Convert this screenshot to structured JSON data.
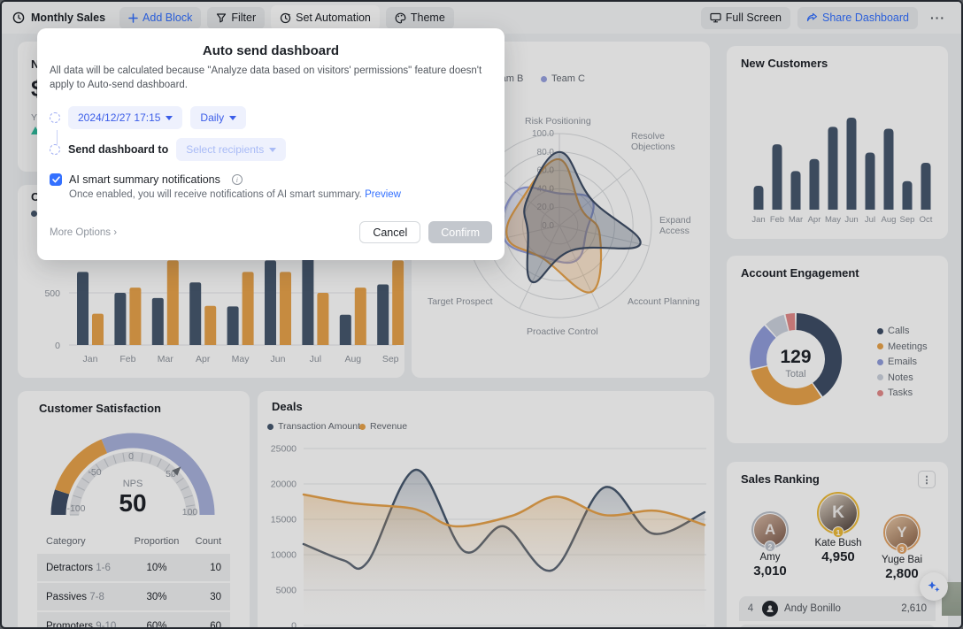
{
  "colors": {
    "accent": "#3370ff",
    "navy": "#47586f",
    "orange": "#e8a34b",
    "purple": "#98a2e0",
    "gauge_purple": "#a9b2dc",
    "notes_gray": "#ccd2dd",
    "tasks_red": "#e38b8b",
    "green": "#2ebf9f",
    "grid": "#e3e5e8",
    "tick_text": "#8f959e"
  },
  "toolbar": {
    "title": "Monthly Sales",
    "add_block": "Add Block",
    "filter": "Filter",
    "set_automation": "Set Automation",
    "theme": "Theme",
    "full_screen": "Full Screen",
    "share_dashboard": "Share Dashboard",
    "more": "···"
  },
  "modal": {
    "title": "Auto send dashboard",
    "description": "All data will be calculated because \"Analyze data based on visitors' permissions\" feature doesn't apply to Auto-send dashboard.",
    "schedule_time": "2024/12/27 17:15",
    "frequency": "Daily",
    "send_to_label": "Send dashboard to",
    "recipients_placeholder": "Select recipients",
    "ai_label": "AI smart summary notifications",
    "ai_description": "Once enabled, you will receive notifications of AI smart summary.",
    "preview": "Preview",
    "more_options": "More Options",
    "cancel": "Cancel",
    "confirm": "Confirm"
  },
  "fragments": {
    "metric_title": "N",
    "metric_value": "$",
    "metric_sub": "Y",
    "bar_card_title": "C"
  },
  "chart_data": [
    {
      "id": "monthly-grouped-bar",
      "type": "bar",
      "title_visible_fragment": "C",
      "ylim": [
        0,
        900
      ],
      "yticks": [
        {
          "label": "500",
          "value": 500
        },
        {
          "label": "0",
          "value": 0
        }
      ],
      "categories": [
        "Jan",
        "Feb",
        "Mar",
        "Apr",
        "May",
        "Jun",
        "Jul",
        "Aug",
        "Sep"
      ],
      "series": [
        {
          "name": "",
          "color": "#47586f",
          "values": [
            700,
            500,
            450,
            600,
            370,
            810,
            850,
            290,
            580
          ]
        },
        {
          "name": "",
          "color": "#e8a34b",
          "values": [
            300,
            550,
            810,
            375,
            700,
            700,
            500,
            550,
            810
          ]
        }
      ]
    },
    {
      "id": "team-radar",
      "type": "radar",
      "max": 100,
      "tick_labels": [
        "100.0",
        "80.0",
        "60.0",
        "40.0",
        "20.0",
        "0.0"
      ],
      "axes": [
        "Risk Positioning",
        "Resolve Objections",
        "Expand Access",
        "Account Planning",
        "Proactive Control",
        "Target Prospect",
        ""
      ],
      "legend": [
        {
          "name": "Team B",
          "color": "#e8a34b"
        },
        {
          "name": "Team C",
          "color": "#98a2e0"
        }
      ],
      "series": [
        {
          "name": "Team C",
          "color": "#98a2e0",
          "fill": "rgba(152,162,224,0.25)",
          "values": [
            35,
            45,
            30,
            42,
            38,
            62,
            60
          ]
        },
        {
          "name": "Team B",
          "color": "#e8a34b",
          "fill": "rgba(232,163,75,0.28)",
          "values": [
            72,
            30,
            45,
            80,
            40,
            58,
            50
          ]
        },
        {
          "name": "",
          "color": "#3f4e66",
          "fill": "rgba(63,78,102,0.30)",
          "values": [
            80,
            45,
            90,
            30,
            68,
            35,
            45
          ]
        }
      ]
    },
    {
      "id": "new-customers",
      "type": "bar",
      "title": "New Customers",
      "color": "#47586f",
      "categories": [
        "Jan",
        "Feb",
        "Mar",
        "Apr",
        "May",
        "Jun",
        "Jul",
        "Aug",
        "Sep",
        "Oct"
      ],
      "values": [
        26,
        71,
        42,
        55,
        90,
        100,
        62,
        88,
        31,
        51
      ]
    },
    {
      "id": "account-engagement",
      "type": "donut",
      "title": "Account Engagement",
      "center_value": "129",
      "center_label": "Total",
      "total": 129,
      "slices": [
        {
          "label": "Calls",
          "value": 52,
          "color": "#3f4e66"
        },
        {
          "label": "Meetings",
          "value": 40,
          "color": "#e8a34b"
        },
        {
          "label": "Emails",
          "value": 22,
          "color": "#929ddb"
        },
        {
          "label": "Notes",
          "value": 10,
          "color": "#ccd2dd"
        },
        {
          "label": "Tasks",
          "value": 5,
          "color": "#e38b8b"
        }
      ]
    },
    {
      "id": "customer-satisfaction",
      "type": "gauge",
      "title": "Customer Satisfaction",
      "min": -100,
      "max": 100,
      "value": 50,
      "value_label": "50",
      "center_label": "NPS",
      "ticks": [
        "-100",
        "-50",
        "0",
        "50",
        "100"
      ],
      "segments": [
        {
          "from": -100,
          "to": -80,
          "color": "#3f4e66"
        },
        {
          "from": -80,
          "to": -25,
          "color": "#e8a34b"
        },
        {
          "from": -25,
          "to": 100,
          "color": "#a9b2dc"
        }
      ]
    },
    {
      "id": "nps-table",
      "type": "table",
      "columns": [
        "Category",
        "Proportion",
        "Count"
      ],
      "rows": [
        {
          "category": "Detractors",
          "range": "1-6",
          "proportion": "10%",
          "count": "10"
        },
        {
          "category": "Passives",
          "range": "7-8",
          "proportion": "30%",
          "count": "30"
        },
        {
          "category": "Promoters",
          "range": "9-10",
          "proportion": "60%",
          "count": "60"
        }
      ]
    },
    {
      "id": "deals",
      "type": "area",
      "title": "Deals",
      "ylim": [
        0,
        25000
      ],
      "yticks": [
        "25000",
        "20000",
        "15000",
        "10000",
        "5000",
        "0"
      ],
      "series": [
        {
          "name": "Transaction Amount",
          "color": "#47586f",
          "fill": "rgba(71,88,111,0.30)",
          "points": [
            [
              0,
              11500
            ],
            [
              0.1,
              9200
            ],
            [
              0.16,
              9000
            ],
            [
              0.28,
              22000
            ],
            [
              0.4,
              10500
            ],
            [
              0.5,
              14000
            ],
            [
              0.62,
              7800
            ],
            [
              0.75,
              19500
            ],
            [
              0.87,
              13000
            ],
            [
              1,
              16000
            ]
          ]
        },
        {
          "name": "Revenue",
          "color": "#e8a34b",
          "fill": "rgba(232,163,75,0.32)",
          "points": [
            [
              0,
              18500
            ],
            [
              0.12,
              17300
            ],
            [
              0.25,
              16700
            ],
            [
              0.3,
              16000
            ],
            [
              0.38,
              14000
            ],
            [
              0.52,
              15500
            ],
            [
              0.63,
              18200
            ],
            [
              0.75,
              15600
            ],
            [
              0.88,
              16200
            ],
            [
              1,
              14200
            ]
          ]
        }
      ]
    },
    {
      "id": "sales-ranking",
      "type": "ranking",
      "title": "Sales Ranking",
      "menu_icon": "⋮",
      "podium": [
        {
          "rank": "2",
          "name": "Amy",
          "value": "3,010"
        },
        {
          "rank": "1",
          "name": "Kate Bush",
          "value": "4,950"
        },
        {
          "rank": "3",
          "name": "Yuge Bai",
          "value": "2,800"
        }
      ],
      "rows": [
        {
          "rank": "4",
          "name": "Andy Bonillo",
          "value": "2,610"
        }
      ]
    }
  ]
}
